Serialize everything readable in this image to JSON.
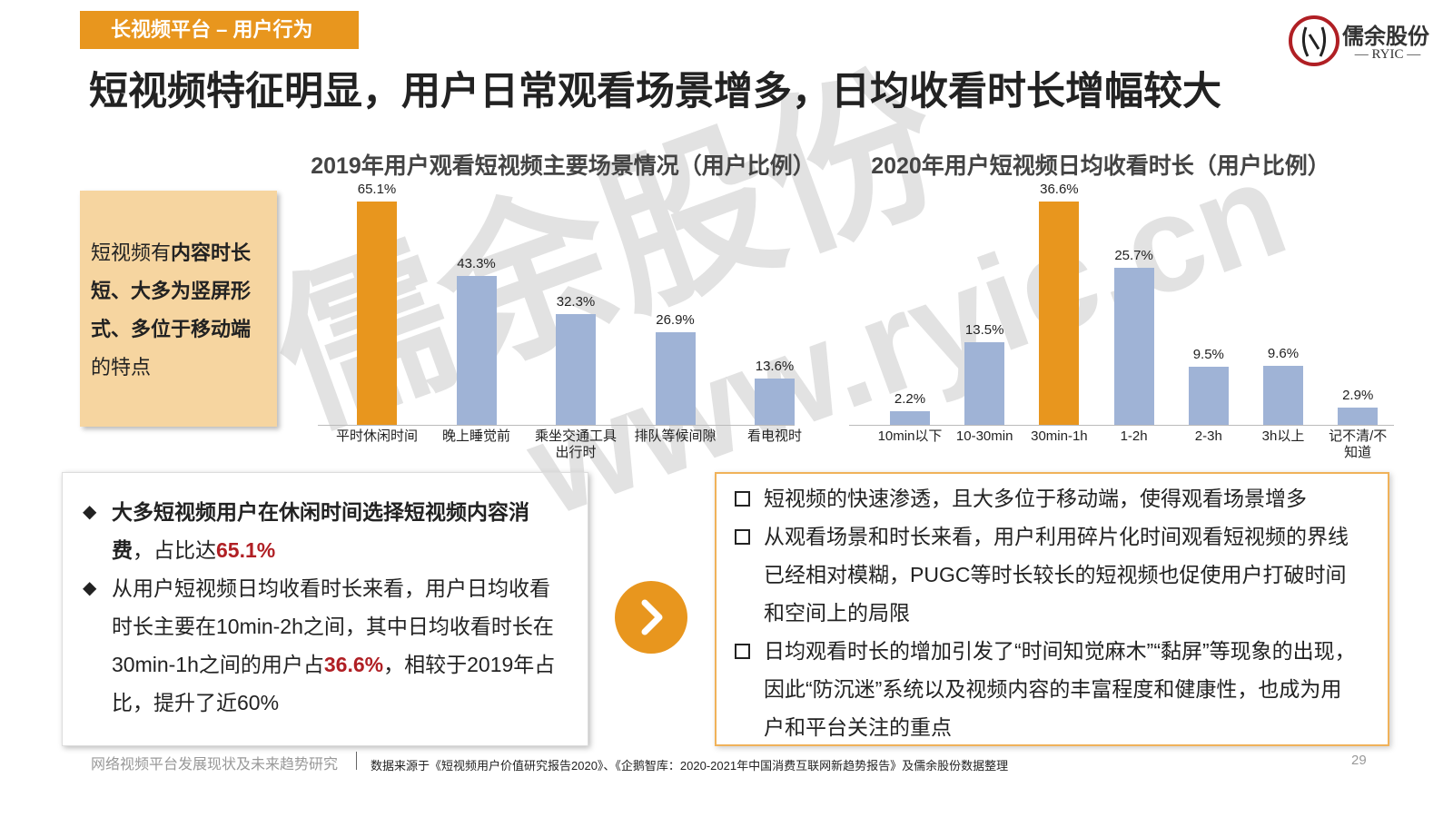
{
  "header": {
    "tag": "长视频平台 – 用户行为",
    "title": "短视频特征明显，用户日常观看场景增多，日均收看时长增幅较大"
  },
  "logo": {
    "name": "儒余股份",
    "sub": "RYIC"
  },
  "watermark": {
    "name": "儒余股份",
    "url": "www.ryic.cn"
  },
  "chart_data": [
    {
      "type": "bar",
      "title": "2019年用户观看短视频主要场景情况（用户比例）",
      "categories": [
        "平时休闲时间",
        "晚上睡觉前",
        "乘坐交通工具出行时",
        "排队等候间隙",
        "看电视时"
      ],
      "values": [
        65.1,
        43.3,
        32.3,
        26.9,
        13.6
      ],
      "value_labels": [
        "65.1%",
        "43.3%",
        "32.3%",
        "26.9%",
        "13.6%"
      ],
      "colors": [
        "#e8961e",
        "#9fb3d6",
        "#9fb3d6",
        "#9fb3d6",
        "#9fb3d6"
      ]
    },
    {
      "type": "bar",
      "title": "2020年用户短视频日均收看时长（用户比例）",
      "categories": [
        "10min以下",
        "10-30min",
        "30min-1h",
        "1-2h",
        "2-3h",
        "3h以上",
        "记不清/不知道"
      ],
      "values": [
        2.2,
        13.5,
        36.6,
        25.7,
        9.5,
        9.6,
        2.9
      ],
      "value_labels": [
        "2.2%",
        "13.5%",
        "36.6%",
        "25.7%",
        "9.5%",
        "9.6%",
        "2.9%"
      ],
      "colors": [
        "#9fb3d6",
        "#9fb3d6",
        "#e8961e",
        "#9fb3d6",
        "#9fb3d6",
        "#9fb3d6",
        "#9fb3d6"
      ]
    }
  ],
  "feature_box": [
    {
      "text": "短视频有"
    },
    {
      "text": "内容时长短、大多为竖屏形式、多位于移动端",
      "bold": true
    },
    {
      "text": "的特点"
    }
  ],
  "summary": [
    [
      {
        "text": "大多短视频用户在休闲时间选择短视频内容消费",
        "bold": true
      },
      {
        "text": "，占比达"
      },
      {
        "text": "65.1%",
        "highlight": true
      }
    ],
    [
      {
        "text": "从用户短视频日均收看时长来看，用户日均收看时长主要在10min-2h之间，其中日均收看时长在30min-1h之间的用户占"
      },
      {
        "text": "36.6%",
        "highlight": true
      },
      {
        "text": "，相较于2019年占比，提升了近60%"
      }
    ]
  ],
  "insights": [
    "短视频的快速渗透，且大多位于移动端，使得观看场景增多",
    "从观看场景和时长来看，用户利用碎片化时间观看短视频的界线已经相对模糊，PUGC等时长较长的短视频也促使用户打破时间和空间上的局限",
    "日均观看时长的增加引发了“时间知觉麻木”“黏屏”等现象的出现，因此“防沉迷”系统以及视频内容的丰富程度和健康性，也成为用户和平台关注的重点"
  ],
  "footer": {
    "report": "网络视频平台发展现状及未来趋势研究",
    "source": "数据来源于《短视频用户价值研究报告2020》、《企鹅智库：2020-2021年中国消费互联网新趋势报告》及儒余股份数据整理",
    "page": "29"
  }
}
